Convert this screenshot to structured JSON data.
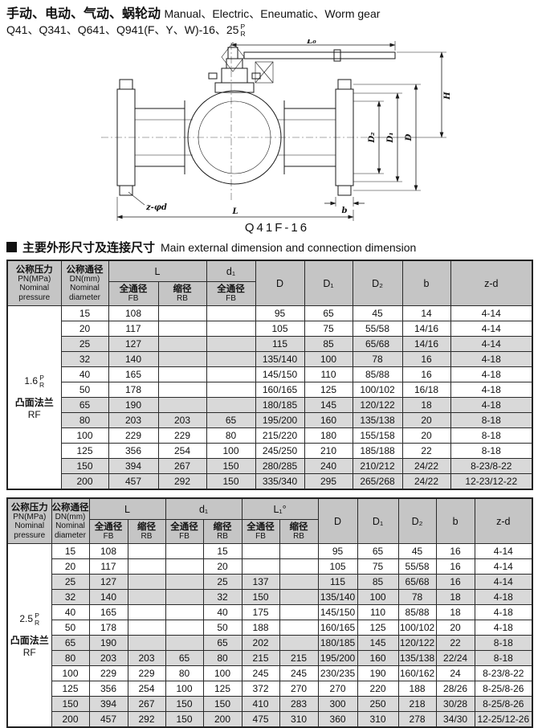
{
  "title": {
    "zh": "手动、电动、气动、蜗轮动",
    "en": "Manual、Electric、Eneumatic、Worm gear",
    "model_line": "Q41、Q341、Q641、Q941(F、Y、W)-16、25",
    "pr_top": "P",
    "pr_bottom": "R"
  },
  "drawing": {
    "caption": "Q41F-16",
    "dim_lo": "L₀",
    "dim_h": "H",
    "dim_d2": "D₂",
    "dim_d1": "D₁",
    "dim_d": "D",
    "dim_b": "b",
    "dim_zd": "z-φd",
    "dim_l": "L"
  },
  "section": {
    "zh": "主要外形尺寸及连接尺寸",
    "en": "Main external dimension and connection dimension"
  },
  "ch": {
    "pressure_zh": "公称压力",
    "pressure_2": "PN(MPa)",
    "pressure_3": "Nominal",
    "pressure_4": "pressure",
    "dia_zh": "公称通径",
    "dia_2": "DN(mm)",
    "dia_3": "Nominal",
    "dia_4": "diameter",
    "L": "L",
    "d1": "d₁",
    "L1": "L₁°",
    "D": "D",
    "D1": "D₁",
    "D2": "D₂",
    "b": "b",
    "zd": "z-d",
    "fb_zh": "全通径",
    "fb": "FB",
    "rb_zh": "缩径",
    "rb": "RB"
  },
  "colors": {
    "header_bg": "#c5c5c5",
    "shaded_row_bg": "#d9d9d9",
    "line": "#1a1a1a"
  },
  "table1": {
    "pressure_value": "1.6",
    "pr_top": "P",
    "pr_bottom": "R",
    "flange_zh": "凸面法兰",
    "flange_en": "RF",
    "rows": [
      {
        "shaded": false,
        "cells": [
          "15",
          "108",
          "",
          "",
          "95",
          "65",
          "45",
          "14",
          "4-14"
        ]
      },
      {
        "shaded": false,
        "cells": [
          "20",
          "117",
          "",
          "",
          "105",
          "75",
          "55/58",
          "14/16",
          "4-14"
        ]
      },
      {
        "shaded": true,
        "cells": [
          "25",
          "127",
          "",
          "",
          "115",
          "85",
          "65/68",
          "14/16",
          "4-14"
        ]
      },
      {
        "shaded": true,
        "cells": [
          "32",
          "140",
          "",
          "",
          "135/140",
          "100",
          "78",
          "16",
          "4-18"
        ]
      },
      {
        "shaded": false,
        "cells": [
          "40",
          "165",
          "",
          "",
          "145/150",
          "110",
          "85/88",
          "16",
          "4-18"
        ]
      },
      {
        "shaded": false,
        "cells": [
          "50",
          "178",
          "",
          "",
          "160/165",
          "125",
          "100/102",
          "16/18",
          "4-18"
        ]
      },
      {
        "shaded": true,
        "cells": [
          "65",
          "190",
          "",
          "",
          "180/185",
          "145",
          "120/122",
          "18",
          "4-18"
        ]
      },
      {
        "shaded": true,
        "cells": [
          "80",
          "203",
          "203",
          "65",
          "195/200",
          "160",
          "135/138",
          "20",
          "8-18"
        ]
      },
      {
        "shaded": false,
        "cells": [
          "100",
          "229",
          "229",
          "80",
          "215/220",
          "180",
          "155/158",
          "20",
          "8-18"
        ]
      },
      {
        "shaded": false,
        "cells": [
          "125",
          "356",
          "254",
          "100",
          "245/250",
          "210",
          "185/188",
          "22",
          "8-18"
        ]
      },
      {
        "shaded": true,
        "cells": [
          "150",
          "394",
          "267",
          "150",
          "280/285",
          "240",
          "210/212",
          "24/22",
          "8-23/8-22"
        ]
      },
      {
        "shaded": true,
        "cells": [
          "200",
          "457",
          "292",
          "150",
          "335/340",
          "295",
          "265/268",
          "24/22",
          "12-23/12-22"
        ]
      }
    ]
  },
  "table2": {
    "pressure_value": "2.5",
    "pr_top": "P",
    "pr_bottom": "R",
    "flange_zh": "凸面法兰",
    "flange_en": "RF",
    "rows": [
      {
        "shaded": false,
        "cells": [
          "15",
          "108",
          "",
          "",
          "15",
          "",
          "",
          "95",
          "65",
          "45",
          "16",
          "4-14"
        ]
      },
      {
        "shaded": false,
        "cells": [
          "20",
          "117",
          "",
          "",
          "20",
          "",
          "",
          "105",
          "75",
          "55/58",
          "16",
          "4-14"
        ]
      },
      {
        "shaded": true,
        "cells": [
          "25",
          "127",
          "",
          "",
          "25",
          "137",
          "",
          "115",
          "85",
          "65/68",
          "16",
          "4-14"
        ]
      },
      {
        "shaded": true,
        "cells": [
          "32",
          "140",
          "",
          "",
          "32",
          "150",
          "",
          "135/140",
          "100",
          "78",
          "18",
          "4-18"
        ]
      },
      {
        "shaded": false,
        "cells": [
          "40",
          "165",
          "",
          "",
          "40",
          "175",
          "",
          "145/150",
          "110",
          "85/88",
          "18",
          "4-18"
        ]
      },
      {
        "shaded": false,
        "cells": [
          "50",
          "178",
          "",
          "",
          "50",
          "188",
          "",
          "160/165",
          "125",
          "100/102",
          "20",
          "4-18"
        ]
      },
      {
        "shaded": true,
        "cells": [
          "65",
          "190",
          "",
          "",
          "65",
          "202",
          "",
          "180/185",
          "145",
          "120/122",
          "22",
          "8-18"
        ]
      },
      {
        "shaded": true,
        "cells": [
          "80",
          "203",
          "203",
          "65",
          "80",
          "215",
          "215",
          "195/200",
          "160",
          "135/138",
          "22/24",
          "8-18"
        ]
      },
      {
        "shaded": false,
        "cells": [
          "100",
          "229",
          "229",
          "80",
          "100",
          "245",
          "245",
          "230/235",
          "190",
          "160/162",
          "24",
          "8-23/8-22"
        ]
      },
      {
        "shaded": false,
        "cells": [
          "125",
          "356",
          "254",
          "100",
          "125",
          "372",
          "270",
          "270",
          "220",
          "188",
          "28/26",
          "8-25/8-26"
        ]
      },
      {
        "shaded": true,
        "cells": [
          "150",
          "394",
          "267",
          "150",
          "150",
          "410",
          "283",
          "300",
          "250",
          "218",
          "30/28",
          "8-25/8-26"
        ]
      },
      {
        "shaded": true,
        "cells": [
          "200",
          "457",
          "292",
          "150",
          "200",
          "475",
          "310",
          "360",
          "310",
          "278",
          "34/30",
          "12-25/12-26"
        ]
      }
    ]
  }
}
